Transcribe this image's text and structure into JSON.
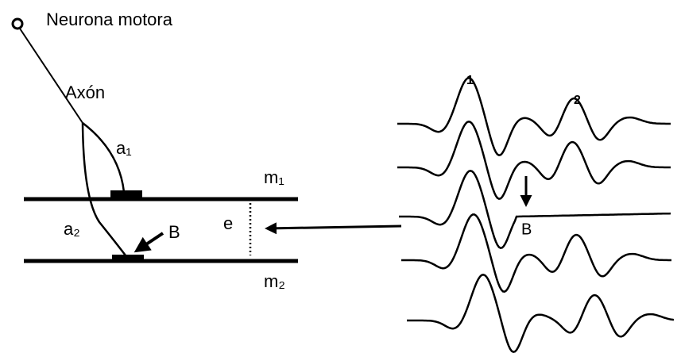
{
  "labels": {
    "neuron": "Neurona motora",
    "axon": "Axón",
    "a1": "a₁",
    "m1": "m₁",
    "a2": "a₂",
    "block_left": "B",
    "e": "e",
    "m2": "m₂",
    "wave1": "1",
    "wave2": "2",
    "block_right": "B"
  }
}
